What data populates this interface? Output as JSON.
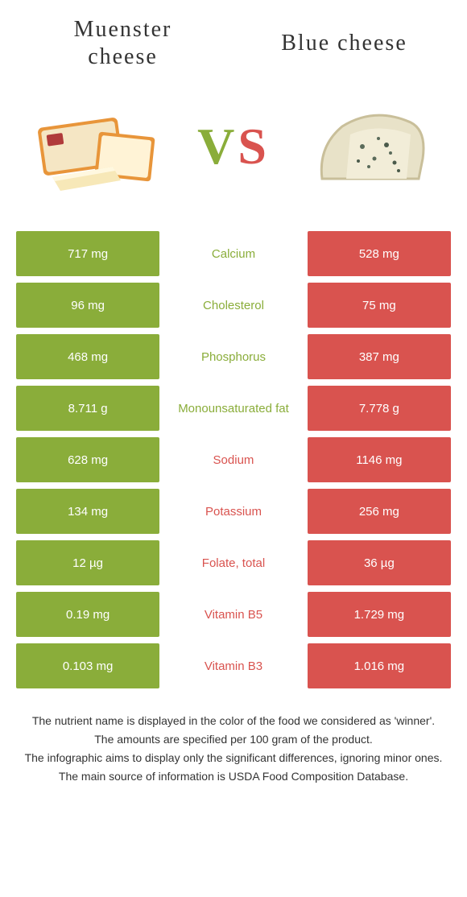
{
  "colors": {
    "left": "#8aad3a",
    "right": "#d9534f",
    "background": "#ffffff"
  },
  "header": {
    "left_title_l1": "Muenster",
    "left_title_l2": "cheese",
    "right_title": "Blue cheese"
  },
  "vs": {
    "v": "V",
    "s": "S"
  },
  "rows": [
    {
      "left": "717 mg",
      "mid": "Calcium",
      "right": "528 mg",
      "winner": "left"
    },
    {
      "left": "96 mg",
      "mid": "Cholesterol",
      "right": "75 mg",
      "winner": "left"
    },
    {
      "left": "468 mg",
      "mid": "Phosphorus",
      "right": "387 mg",
      "winner": "left"
    },
    {
      "left": "8.711 g",
      "mid": "Monounsaturated fat",
      "right": "7.778 g",
      "winner": "left"
    },
    {
      "left": "628 mg",
      "mid": "Sodium",
      "right": "1146 mg",
      "winner": "right"
    },
    {
      "left": "134 mg",
      "mid": "Potassium",
      "right": "256 mg",
      "winner": "right"
    },
    {
      "left": "12 µg",
      "mid": "Folate, total",
      "right": "36 µg",
      "winner": "right"
    },
    {
      "left": "0.19 mg",
      "mid": "Vitamin B5",
      "right": "1.729 mg",
      "winner": "right"
    },
    {
      "left": "0.103 mg",
      "mid": "Vitamin B3",
      "right": "1.016 mg",
      "winner": "right"
    }
  ],
  "footer": {
    "p1": "The nutrient name is displayed in the color of the food we considered as 'winner'.",
    "p2": "The amounts are specified per 100 gram of the product.",
    "p3": "The infographic aims to display only the significant differences, ignoring minor ones.",
    "p4": "The main source of information is USDA Food Composition Database."
  }
}
